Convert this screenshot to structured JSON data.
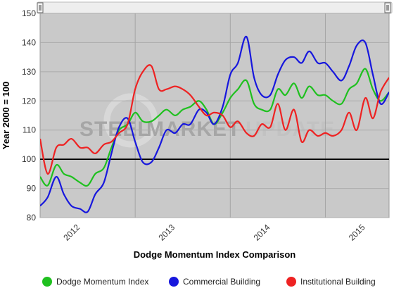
{
  "watermark": {
    "brand": "STEEL MARKET UPDATE",
    "text_steel": "STEEL",
    "text_market": "MARKET",
    "text_update": "UPDATE"
  },
  "chart_data": {
    "type": "line",
    "title": "",
    "xlabel": "Dodge Momentum Index Comparison",
    "ylabel": "Year 2000 = 100",
    "ylim": [
      80,
      150
    ],
    "yticks": [
      80,
      90,
      100,
      110,
      120,
      130,
      140,
      150
    ],
    "xlim": [
      2012.0,
      2015.67
    ],
    "year_ticks": [
      2012,
      2013,
      2014,
      2015
    ],
    "x_labels": [
      "2012",
      "2013",
      "2014",
      "2015"
    ],
    "reference_line": 100,
    "grid": true,
    "legend_position": "bottom",
    "series": [
      {
        "name": "Dodge Momentum Index",
        "color": "#1fc01f",
        "points": [
          [
            2012.0,
            94
          ],
          [
            2012.08,
            91
          ],
          [
            2012.17,
            98
          ],
          [
            2012.25,
            95
          ],
          [
            2012.33,
            94
          ],
          [
            2012.42,
            92
          ],
          [
            2012.5,
            91
          ],
          [
            2012.58,
            95
          ],
          [
            2012.67,
            97
          ],
          [
            2012.75,
            104
          ],
          [
            2012.83,
            110
          ],
          [
            2012.92,
            112
          ],
          [
            2013.0,
            116
          ],
          [
            2013.08,
            113
          ],
          [
            2013.17,
            113
          ],
          [
            2013.25,
            115
          ],
          [
            2013.33,
            117
          ],
          [
            2013.42,
            115
          ],
          [
            2013.5,
            117
          ],
          [
            2013.58,
            118
          ],
          [
            2013.67,
            120
          ],
          [
            2013.75,
            117
          ],
          [
            2013.83,
            112
          ],
          [
            2013.92,
            116
          ],
          [
            2014.0,
            121
          ],
          [
            2014.08,
            124
          ],
          [
            2014.17,
            127
          ],
          [
            2014.25,
            119
          ],
          [
            2014.33,
            117
          ],
          [
            2014.42,
            117
          ],
          [
            2014.5,
            124
          ],
          [
            2014.58,
            122
          ],
          [
            2014.67,
            126
          ],
          [
            2014.75,
            121
          ],
          [
            2014.83,
            125
          ],
          [
            2014.92,
            122
          ],
          [
            2015.0,
            122
          ],
          [
            2015.08,
            120
          ],
          [
            2015.17,
            119
          ],
          [
            2015.25,
            124
          ],
          [
            2015.33,
            126
          ],
          [
            2015.42,
            131
          ],
          [
            2015.5,
            124
          ],
          [
            2015.58,
            120
          ],
          [
            2015.67,
            123
          ]
        ]
      },
      {
        "name": "Commercial Building",
        "color": "#1717dd",
        "points": [
          [
            2012.0,
            84
          ],
          [
            2012.08,
            87
          ],
          [
            2012.17,
            94
          ],
          [
            2012.25,
            88
          ],
          [
            2012.33,
            84
          ],
          [
            2012.42,
            83
          ],
          [
            2012.5,
            82
          ],
          [
            2012.58,
            88
          ],
          [
            2012.67,
            92
          ],
          [
            2012.75,
            102
          ],
          [
            2012.83,
            111
          ],
          [
            2012.92,
            114
          ],
          [
            2013.0,
            106
          ],
          [
            2013.08,
            99
          ],
          [
            2013.17,
            99
          ],
          [
            2013.25,
            104
          ],
          [
            2013.33,
            110
          ],
          [
            2013.42,
            109
          ],
          [
            2013.5,
            112
          ],
          [
            2013.58,
            112
          ],
          [
            2013.67,
            117
          ],
          [
            2013.75,
            116
          ],
          [
            2013.83,
            112
          ],
          [
            2013.92,
            118
          ],
          [
            2014.0,
            129
          ],
          [
            2014.08,
            133
          ],
          [
            2014.17,
            142
          ],
          [
            2014.25,
            128
          ],
          [
            2014.33,
            122
          ],
          [
            2014.42,
            122
          ],
          [
            2014.5,
            129
          ],
          [
            2014.58,
            134
          ],
          [
            2014.67,
            135
          ],
          [
            2014.75,
            133
          ],
          [
            2014.83,
            137
          ],
          [
            2014.92,
            133
          ],
          [
            2015.0,
            133
          ],
          [
            2015.08,
            130
          ],
          [
            2015.17,
            127
          ],
          [
            2015.25,
            132
          ],
          [
            2015.33,
            139
          ],
          [
            2015.42,
            140
          ],
          [
            2015.5,
            129
          ],
          [
            2015.58,
            119
          ],
          [
            2015.67,
            123
          ]
        ]
      },
      {
        "name": "Institutional Building",
        "color": "#ee2222",
        "points": [
          [
            2012.0,
            107
          ],
          [
            2012.08,
            95
          ],
          [
            2012.17,
            104
          ],
          [
            2012.25,
            105
          ],
          [
            2012.33,
            107
          ],
          [
            2012.42,
            104
          ],
          [
            2012.5,
            104
          ],
          [
            2012.58,
            102
          ],
          [
            2012.67,
            105
          ],
          [
            2012.75,
            106
          ],
          [
            2012.83,
            109
          ],
          [
            2012.92,
            112
          ],
          [
            2013.0,
            124
          ],
          [
            2013.08,
            130
          ],
          [
            2013.17,
            132
          ],
          [
            2013.25,
            124
          ],
          [
            2013.33,
            124
          ],
          [
            2013.42,
            125
          ],
          [
            2013.5,
            124
          ],
          [
            2013.58,
            122
          ],
          [
            2013.67,
            118
          ],
          [
            2013.75,
            115
          ],
          [
            2013.83,
            116
          ],
          [
            2013.92,
            115
          ],
          [
            2014.0,
            111
          ],
          [
            2014.08,
            113
          ],
          [
            2014.17,
            109
          ],
          [
            2014.25,
            108
          ],
          [
            2014.33,
            112
          ],
          [
            2014.42,
            111
          ],
          [
            2014.5,
            119
          ],
          [
            2014.58,
            110
          ],
          [
            2014.67,
            117
          ],
          [
            2014.75,
            106
          ],
          [
            2014.83,
            110
          ],
          [
            2014.92,
            108
          ],
          [
            2015.0,
            109
          ],
          [
            2015.08,
            108
          ],
          [
            2015.17,
            110
          ],
          [
            2015.25,
            116
          ],
          [
            2015.33,
            110
          ],
          [
            2015.42,
            121
          ],
          [
            2015.5,
            114
          ],
          [
            2015.58,
            123
          ],
          [
            2015.67,
            128
          ]
        ]
      }
    ]
  }
}
